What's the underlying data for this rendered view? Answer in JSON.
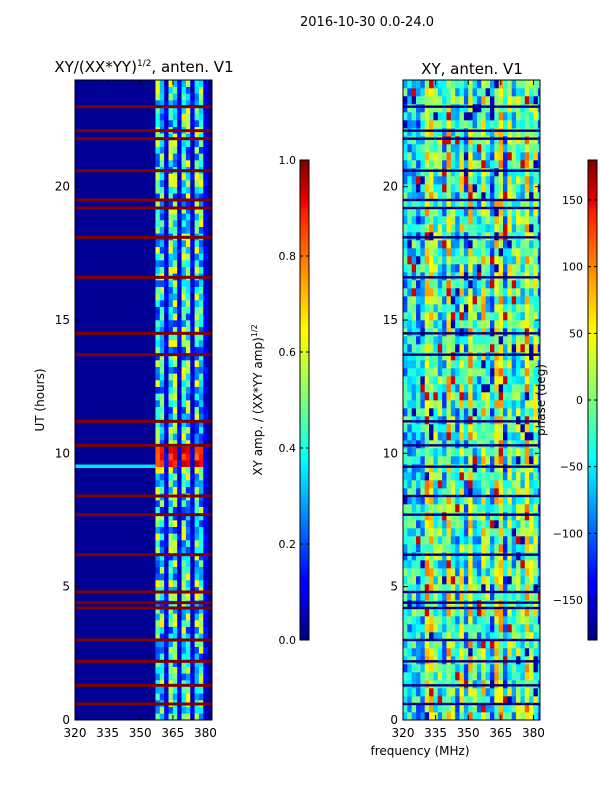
{
  "figure": {
    "suptitle": "2016-10-30 0.0-24.0",
    "shared_xlabel": "frequency (MHz)"
  },
  "chart_data": [
    {
      "type": "heatmap",
      "title": "XY/(XX*YY)",
      "title_exponent": "1/2",
      "title_suffix": ", anten. V1",
      "ylabel": "UT (hours)",
      "xlim": [
        320,
        383
      ],
      "ylim": [
        0,
        24
      ],
      "x_ticks": [
        "320",
        "335",
        "350",
        "365",
        "380"
      ],
      "x_tick_values": [
        320,
        335,
        350,
        365,
        380
      ],
      "y_ticks": [
        "0",
        "5",
        "10",
        "15",
        "20"
      ],
      "y_tick_values": [
        0,
        5,
        10,
        15,
        20
      ],
      "colorbar": {
        "label_main": "XY amp. / (XX*YY amp)",
        "label_exponent": "1/2",
        "range": [
          0.0,
          1.0
        ],
        "ticks": [
          "0.0",
          "0.2",
          "0.4",
          "0.6",
          "0.8",
          "1.0"
        ],
        "tick_values": [
          0.0,
          0.2,
          0.4,
          0.6,
          0.8,
          1.0
        ]
      },
      "flagged_hours": [
        0.6,
        1.3,
        2.2,
        3.0,
        4.2,
        4.4,
        4.8,
        6.2,
        7.7,
        8.4,
        10.3,
        11.2,
        13.7,
        14.5,
        16.6,
        18.1,
        19.2,
        19.5,
        20.6,
        21.8,
        22.1,
        23.0
      ],
      "strong_band_mhz": [
        357,
        380
      ],
      "strong_hours": [
        9.4,
        10.4
      ],
      "data_summary": "Low normalized amplitude (~0.0–0.1) below ~358 MHz; patchy 0.2–0.7 values at 358–381 MHz; peak ~0.8–1.0 near 9.5–10.3 UT; red horizontal lines at flagged times."
    },
    {
      "type": "heatmap",
      "title": "XY, anten. V1",
      "ylabel": "",
      "xlim": [
        320,
        383
      ],
      "ylim": [
        0,
        24
      ],
      "x_ticks": [
        "320",
        "335",
        "350",
        "365",
        "380"
      ],
      "x_tick_values": [
        320,
        335,
        350,
        365,
        380
      ],
      "y_ticks": [
        "0",
        "5",
        "10",
        "15",
        "20"
      ],
      "y_tick_values": [
        0,
        5,
        10,
        15,
        20
      ],
      "colorbar": {
        "label": "phase (deg)",
        "range": [
          -180,
          180
        ],
        "ticks": [
          "150",
          "100",
          "50",
          "0",
          "−50",
          "−100",
          "−150"
        ],
        "tick_values": [
          150,
          100,
          50,
          0,
          -50,
          -100,
          -150
        ]
      },
      "flagged_hours": [
        0.6,
        1.3,
        2.2,
        3.0,
        4.2,
        4.4,
        4.8,
        6.2,
        7.7,
        8.4,
        9.5,
        10.3,
        11.2,
        13.7,
        14.5,
        16.6,
        18.1,
        19.2,
        19.5,
        20.6,
        21.8,
        22.1,
        23.0
      ],
      "data_summary": "Phase spans the full −180 to 180 deg range with noisy vertical striping across all frequencies; dark horizontal lines at flagged times."
    }
  ]
}
